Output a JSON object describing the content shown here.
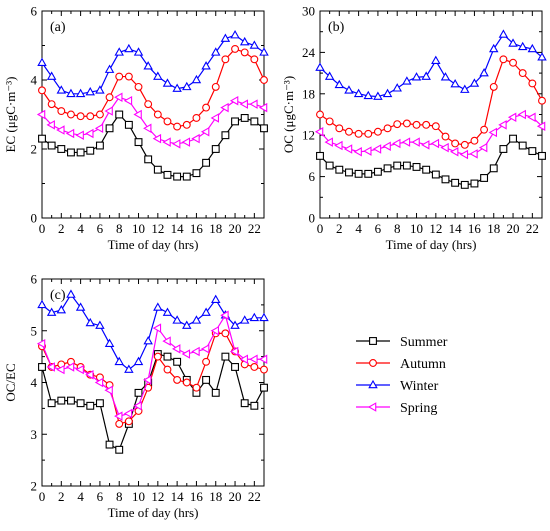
{
  "legend": [
    {
      "name": "Summer",
      "color": "#000000",
      "marker": "square"
    },
    {
      "name": "Autumn",
      "color": "#ff0000",
      "marker": "circle"
    },
    {
      "name": "Winter",
      "color": "#0000ff",
      "marker": "triangle-up"
    },
    {
      "name": "Spring",
      "color": "#ff00ff",
      "marker": "triangle-left"
    }
  ],
  "chart_data": [
    {
      "id": "a",
      "type": "line",
      "panel_label": "(a)",
      "xlabel": "Time of day (hrs)",
      "ylabel": "EC (μgC·m⁻³)",
      "x": [
        0,
        1,
        2,
        3,
        4,
        5,
        6,
        7,
        8,
        9,
        10,
        11,
        12,
        13,
        14,
        15,
        16,
        17,
        18,
        19,
        20,
        21,
        22,
        23
      ],
      "xlim": [
        0,
        23
      ],
      "ylim": [
        0,
        6
      ],
      "xticks": [
        0,
        2,
        4,
        6,
        8,
        10,
        12,
        14,
        16,
        18,
        20,
        22
      ],
      "yticks": [
        0,
        2,
        4,
        6
      ],
      "series": [
        {
          "name": "Summer",
          "values": [
            2.3,
            2.1,
            2.0,
            1.9,
            1.9,
            1.95,
            2.1,
            2.6,
            3.0,
            2.7,
            2.2,
            1.7,
            1.4,
            1.25,
            1.2,
            1.2,
            1.3,
            1.6,
            2.0,
            2.4,
            2.8,
            2.9,
            2.8,
            2.6
          ]
        },
        {
          "name": "Autumn",
          "values": [
            3.7,
            3.3,
            3.1,
            3.0,
            2.95,
            2.95,
            3.0,
            3.5,
            4.1,
            4.1,
            3.8,
            3.3,
            3.0,
            2.8,
            2.65,
            2.7,
            2.9,
            3.2,
            3.8,
            4.6,
            4.9,
            4.8,
            4.6,
            4.0
          ]
        },
        {
          "name": "Winter",
          "values": [
            4.5,
            4.1,
            3.7,
            3.6,
            3.6,
            3.65,
            3.7,
            4.3,
            4.8,
            4.9,
            4.8,
            4.4,
            4.1,
            3.9,
            3.75,
            3.8,
            4.0,
            4.4,
            4.8,
            5.2,
            5.3,
            5.1,
            5.0,
            4.8
          ]
        },
        {
          "name": "Spring",
          "values": [
            3.0,
            2.7,
            2.55,
            2.45,
            2.4,
            2.45,
            2.6,
            3.1,
            3.5,
            3.4,
            3.0,
            2.6,
            2.3,
            2.2,
            2.15,
            2.2,
            2.3,
            2.5,
            2.9,
            3.2,
            3.4,
            3.3,
            3.3,
            3.2
          ]
        }
      ]
    },
    {
      "id": "b",
      "type": "line",
      "panel_label": "(b)",
      "xlabel": "Time of day (hrs)",
      "ylabel": "OC (μgC·m⁻³)",
      "x": [
        0,
        1,
        2,
        3,
        4,
        5,
        6,
        7,
        8,
        9,
        10,
        11,
        12,
        13,
        14,
        15,
        16,
        17,
        18,
        19,
        20,
        21,
        22,
        23
      ],
      "xlim": [
        0,
        23
      ],
      "ylim": [
        0,
        30
      ],
      "xticks": [
        0,
        2,
        4,
        6,
        8,
        10,
        12,
        14,
        16,
        18,
        20,
        22
      ],
      "yticks": [
        0,
        6,
        12,
        18,
        24,
        30
      ],
      "series": [
        {
          "name": "Summer",
          "values": [
            9.0,
            7.6,
            7.0,
            6.6,
            6.4,
            6.4,
            6.7,
            7.2,
            7.6,
            7.6,
            7.4,
            7.0,
            6.3,
            5.6,
            5.1,
            4.8,
            5.0,
            5.8,
            7.2,
            10.0,
            11.5,
            10.5,
            9.7,
            9.0
          ]
        },
        {
          "name": "Autumn",
          "values": [
            15.0,
            14.0,
            13.0,
            12.5,
            12.2,
            12.2,
            12.5,
            13.0,
            13.6,
            13.7,
            13.5,
            13.5,
            13.3,
            11.8,
            10.8,
            10.6,
            11.2,
            12.8,
            19.0,
            23.0,
            22.5,
            21.0,
            19.5,
            17.0
          ]
        },
        {
          "name": "Winter",
          "values": [
            21.8,
            20.5,
            19.3,
            18.5,
            18.0,
            17.7,
            17.6,
            18.0,
            18.8,
            19.8,
            20.4,
            20.5,
            22.8,
            20.4,
            19.4,
            18.6,
            19.5,
            21.0,
            24.5,
            26.6,
            25.3,
            24.8,
            24.5,
            23.3
          ]
        },
        {
          "name": "Spring",
          "values": [
            12.5,
            11.0,
            10.5,
            10.0,
            9.6,
            9.7,
            10.0,
            10.4,
            10.8,
            11.0,
            11.0,
            10.6,
            10.8,
            10.2,
            9.6,
            9.2,
            9.3,
            10.2,
            12.4,
            13.5,
            14.6,
            15.0,
            14.6,
            13.3
          ]
        }
      ]
    },
    {
      "id": "c",
      "type": "line",
      "panel_label": "(c)",
      "xlabel": "Time of day (hrs)",
      "ylabel": "OC/EC",
      "x": [
        0,
        1,
        2,
        3,
        4,
        5,
        6,
        7,
        8,
        9,
        10,
        11,
        12,
        13,
        14,
        15,
        16,
        17,
        18,
        19,
        20,
        21,
        22,
        23
      ],
      "xlim": [
        0,
        23
      ],
      "ylim": [
        2,
        6
      ],
      "xticks": [
        0,
        2,
        4,
        6,
        8,
        10,
        12,
        14,
        16,
        18,
        20,
        22
      ],
      "yticks": [
        2,
        3,
        4,
        5,
        6
      ],
      "series": [
        {
          "name": "Summer",
          "values": [
            4.3,
            3.6,
            3.65,
            3.65,
            3.6,
            3.55,
            3.6,
            2.8,
            2.7,
            3.2,
            3.8,
            4.0,
            4.55,
            4.5,
            4.4,
            4.05,
            3.8,
            4.05,
            3.8,
            4.5,
            4.3,
            3.6,
            3.55,
            3.9
          ]
        },
        {
          "name": "Autumn",
          "values": [
            4.7,
            4.3,
            4.35,
            4.4,
            4.3,
            4.15,
            4.1,
            3.95,
            3.2,
            3.25,
            3.45,
            3.9,
            4.5,
            4.25,
            4.05,
            4.0,
            3.9,
            4.4,
            4.95,
            4.95,
            4.6,
            4.35,
            4.3,
            4.25
          ]
        },
        {
          "name": "Winter",
          "values": [
            5.5,
            5.35,
            5.4,
            5.7,
            5.45,
            5.15,
            5.1,
            4.75,
            4.4,
            4.25,
            4.4,
            4.8,
            5.45,
            5.35,
            5.2,
            5.1,
            5.2,
            5.35,
            5.6,
            5.3,
            5.1,
            5.2,
            5.25,
            5.25
          ]
        },
        {
          "name": "Spring",
          "values": [
            4.75,
            4.3,
            4.25,
            4.3,
            4.25,
            4.15,
            4.0,
            3.85,
            3.35,
            3.4,
            3.55,
            4.05,
            5.05,
            4.8,
            4.65,
            4.55,
            4.6,
            4.65,
            5.0,
            5.3,
            4.6,
            4.45,
            4.45,
            4.45
          ]
        }
      ]
    }
  ]
}
